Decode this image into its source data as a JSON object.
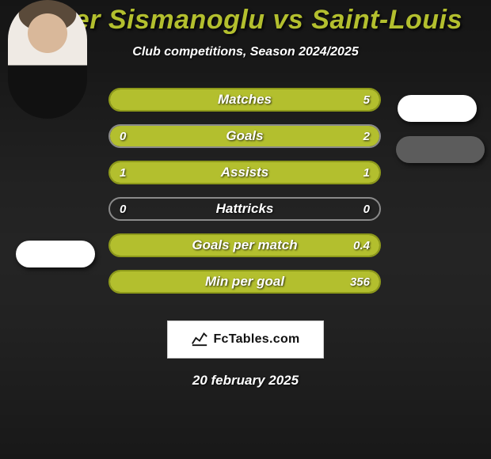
{
  "title": "Omer Sismanoglu vs Saint-Louis",
  "subtitle": "Club competitions, Season 2024/2025",
  "date": "20 february 2025",
  "watermark": "FcTables.com",
  "colors": {
    "accent": "#b3bf2e",
    "accent_dark": "#8e9a1a",
    "neutral_border": "#8a8a8a",
    "white": "#ffffff",
    "title_color": "#b3bf2e",
    "text_color": "#ffffff"
  },
  "bars": [
    {
      "label": "Matches",
      "left_value": "",
      "right_value": "5",
      "left_pct": 0,
      "right_pct": 100,
      "fill_side": "full",
      "border_color": "#8e9a1a",
      "fill_color": "#b3bf2e"
    },
    {
      "label": "Goals",
      "left_value": "0",
      "right_value": "2",
      "left_pct": 0,
      "right_pct": 100,
      "fill_side": "right",
      "border_color": "#8a8a8a",
      "fill_color": "#b3bf2e"
    },
    {
      "label": "Assists",
      "left_value": "1",
      "right_value": "1",
      "left_pct": 50,
      "right_pct": 50,
      "fill_side": "full",
      "border_color": "#8e9a1a",
      "fill_color": "#b3bf2e"
    },
    {
      "label": "Hattricks",
      "left_value": "0",
      "right_value": "0",
      "left_pct": 0,
      "right_pct": 0,
      "fill_side": "none",
      "border_color": "#8a8a8a",
      "fill_color": "#b3bf2e"
    },
    {
      "label": "Goals per match",
      "left_value": "",
      "right_value": "0.4",
      "left_pct": 0,
      "right_pct": 100,
      "fill_side": "full",
      "border_color": "#8e9a1a",
      "fill_color": "#b3bf2e"
    },
    {
      "label": "Min per goal",
      "left_value": "",
      "right_value": "356",
      "left_pct": 0,
      "right_pct": 100,
      "fill_side": "full",
      "border_color": "#8e9a1a",
      "fill_color": "#b3bf2e"
    }
  ]
}
